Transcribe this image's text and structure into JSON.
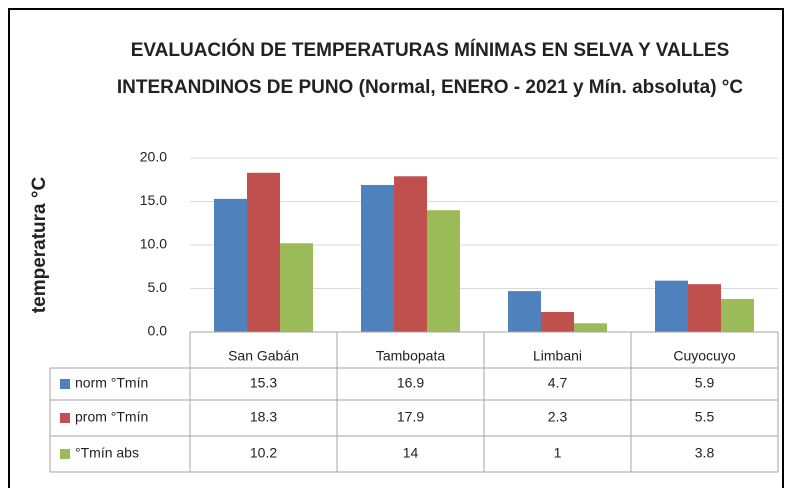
{
  "chart_data": {
    "type": "bar",
    "title": "EVALUACIÓN DE TEMPERATURAS MÍNIMAS EN SELVA Y VALLES INTERANDINOS DE PUNO (Normal, ENERO - 2021 y Mín. absoluta) °C",
    "y_label": "temperatura °C",
    "categories": [
      "San Gabán",
      "Tambopata",
      "Limbani",
      "Cuyocuyo"
    ],
    "series": [
      {
        "name": "norm °Tmín",
        "color": "#4f81bd",
        "values": [
          15.3,
          16.9,
          4.7,
          5.9
        ]
      },
      {
        "name": "prom °Tmín",
        "color": "#c0504d",
        "values": [
          18.3,
          17.9,
          2.3,
          5.5
        ]
      },
      {
        "name": "°Tmín abs",
        "color": "#9bbb59",
        "values": [
          10.2,
          14,
          1,
          3.8
        ]
      }
    ],
    "ylim": [
      0,
      20
    ],
    "yticks": [
      {
        "value": 0,
        "label": "0.0"
      },
      {
        "value": 5,
        "label": "5.0"
      },
      {
        "value": 10,
        "label": "10.0"
      },
      {
        "value": 15,
        "label": "15.0"
      },
      {
        "value": 20,
        "label": "20.0"
      }
    ],
    "grid": true
  }
}
